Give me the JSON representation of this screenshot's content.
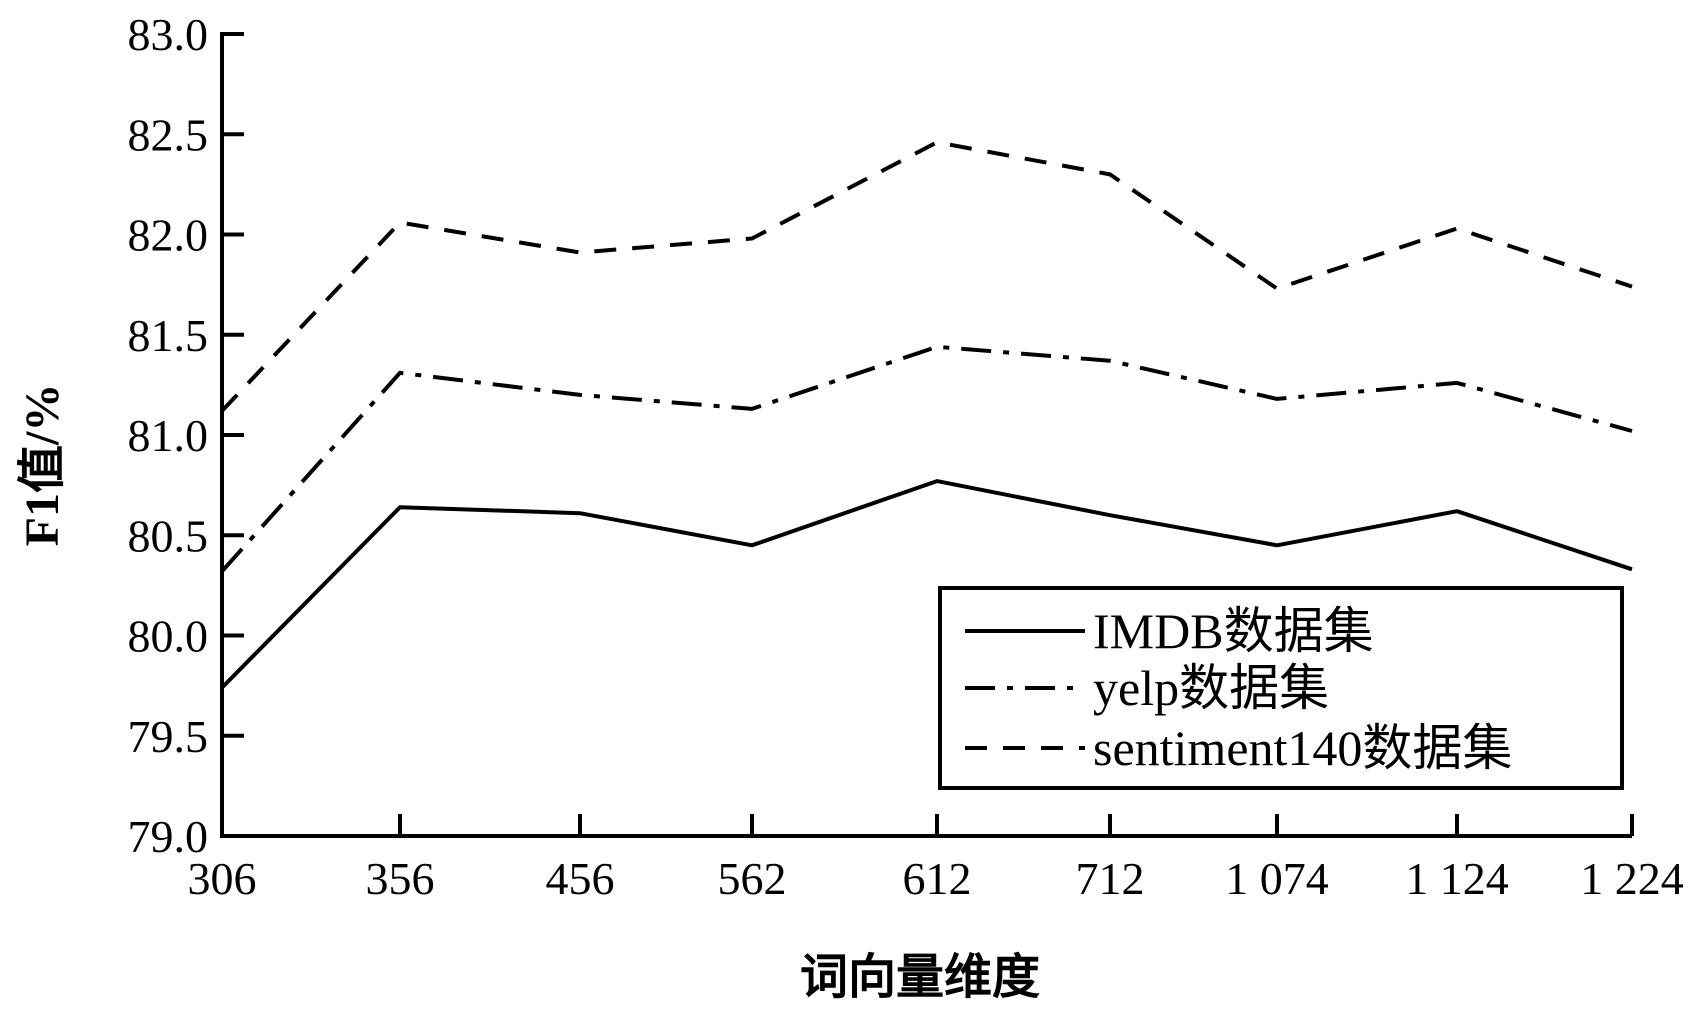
{
  "chart_data": {
    "type": "line",
    "title": "",
    "xlabel": "词向量维度",
    "ylabel": "F1值/%",
    "categories": [
      "306",
      "356",
      "456",
      "562",
      "612",
      "712",
      "1 074",
      "1 124",
      "1 224"
    ],
    "ylim": [
      79.0,
      83.0
    ],
    "yticks": [
      "79.0",
      "79.5",
      "80.0",
      "80.5",
      "81.0",
      "81.5",
      "82.0",
      "82.5",
      "83.0"
    ],
    "grid": false,
    "legend_position": "bottom-right",
    "series": [
      {
        "name": "IMDB数据集",
        "style": "solid",
        "color": "#000000",
        "values": [
          79.74,
          80.64,
          80.61,
          80.45,
          80.77,
          80.6,
          80.45,
          80.62,
          80.33
        ]
      },
      {
        "name": "yelp数据集",
        "style": "dashdot",
        "color": "#000000",
        "values": [
          80.32,
          81.31,
          81.2,
          81.13,
          81.44,
          81.37,
          81.18,
          81.26,
          81.02
        ]
      },
      {
        "name": "sentiment140数据集",
        "style": "dashed",
        "color": "#000000",
        "values": [
          81.12,
          82.06,
          81.91,
          81.98,
          82.46,
          82.3,
          81.73,
          82.03,
          81.74
        ]
      }
    ]
  }
}
